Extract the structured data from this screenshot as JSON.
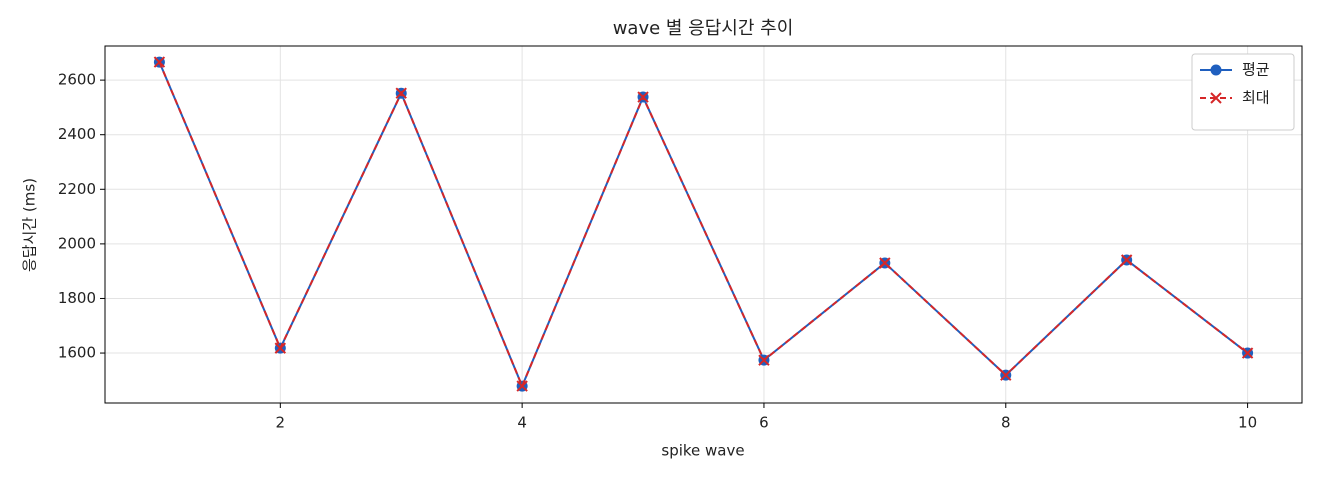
{
  "chart_data": {
    "type": "line",
    "title": "wave 별 응답시간 추이",
    "x_label": "spike wave",
    "y_label": "응답시간 (ms)",
    "x": [
      1,
      2,
      3,
      4,
      5,
      6,
      7,
      8,
      9,
      10
    ],
    "series": [
      {
        "name": "평균",
        "color": "#1f5fbf",
        "linestyle": "solid",
        "marker": "o",
        "values": [
          2666,
          1618,
          2552,
          1479,
          2538,
          1574,
          1930,
          1519,
          1941,
          1600
        ]
      },
      {
        "name": "최대",
        "color": "#d62728",
        "linestyle": "dashed",
        "marker": "x",
        "values": [
          2666,
          1618,
          2552,
          1479,
          2538,
          1574,
          1930,
          1519,
          1941,
          1600
        ]
      }
    ],
    "xlim": [
      0.55,
      10.45
    ],
    "ylim": [
      1417,
      2725
    ],
    "xticks": [
      2,
      4,
      6,
      8,
      10
    ],
    "yticks": [
      1600,
      1800,
      2000,
      2200,
      2400,
      2600
    ],
    "grid": true,
    "legend": "upper right"
  }
}
